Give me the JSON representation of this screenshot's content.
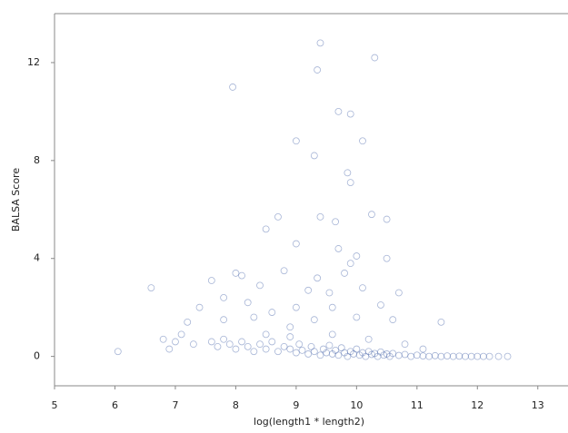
{
  "chart_data": {
    "type": "scatter",
    "xlabel": "log(length1 * length2)",
    "ylabel": "BALSA Score",
    "color": "#3b5ba5",
    "xlim": [
      5,
      13.5
    ],
    "ylim": [
      -1.2,
      14
    ],
    "xticks": [
      5,
      6,
      7,
      8,
      9,
      10,
      11,
      12,
      13
    ],
    "yticks": [
      0,
      4,
      8,
      12
    ],
    "grid": false,
    "x": [
      9.4,
      9.35,
      10.3,
      7.95,
      9.7,
      9.9,
      9.0,
      10.1,
      9.3,
      9.85,
      9.9,
      8.7,
      9.4,
      10.25,
      10.5,
      9.65,
      8.5,
      9.0,
      9.7,
      10.0,
      10.5,
      9.9,
      9.35,
      9.8,
      8.8,
      8.0,
      8.1,
      7.6,
      6.6,
      7.8,
      9.2,
      9.55,
      10.1,
      10.7,
      8.4,
      8.2,
      9.0,
      9.6,
      10.4,
      7.4,
      8.6,
      9.3,
      10.0,
      10.6,
      11.4,
      7.2,
      7.8,
      8.3,
      8.9,
      6.05,
      6.8,
      7.1,
      7.6,
      7.7,
      7.8,
      7.9,
      8.0,
      8.1,
      8.2,
      8.3,
      8.4,
      8.5,
      8.6,
      8.7,
      8.8,
      8.9,
      9.0,
      9.05,
      9.1,
      9.2,
      9.25,
      9.3,
      9.4,
      9.45,
      9.5,
      9.55,
      9.6,
      9.65,
      9.7,
      9.75,
      9.8,
      9.85,
      9.9,
      9.95,
      10.0,
      10.05,
      10.1,
      10.15,
      10.2,
      10.25,
      10.3,
      10.35,
      10.4,
      10.45,
      10.5,
      10.55,
      10.6,
      10.7,
      10.8,
      10.9,
      11.0,
      11.1,
      11.2,
      11.3,
      11.4,
      11.5,
      11.6,
      11.7,
      11.8,
      11.9,
      12.0,
      12.1,
      12.2,
      12.35,
      12.5,
      7.3,
      7.0,
      6.9,
      8.5,
      8.9,
      9.6,
      10.2,
      10.8,
      11.1
    ],
    "values": [
      12.8,
      11.7,
      12.2,
      11.0,
      10.0,
      9.9,
      8.8,
      8.8,
      8.2,
      7.5,
      7.1,
      5.7,
      5.7,
      5.8,
      5.6,
      5.5,
      5.2,
      4.6,
      4.4,
      4.1,
      4.0,
      3.8,
      3.2,
      3.4,
      3.5,
      3.4,
      3.3,
      3.1,
      2.8,
      2.4,
      2.7,
      2.6,
      2.8,
      2.6,
      2.9,
      2.2,
      2.0,
      2.0,
      2.1,
      2.0,
      1.8,
      1.5,
      1.6,
      1.5,
      1.4,
      1.4,
      1.5,
      1.6,
      1.2,
      0.2,
      0.7,
      0.9,
      0.6,
      0.4,
      0.7,
      0.5,
      0.3,
      0.6,
      0.4,
      0.2,
      0.5,
      0.3,
      0.6,
      0.2,
      0.4,
      0.3,
      0.15,
      0.5,
      0.25,
      0.1,
      0.4,
      0.2,
      0.05,
      0.3,
      0.15,
      0.45,
      0.1,
      0.25,
      0.05,
      0.35,
      0.15,
      0.0,
      0.2,
      0.1,
      0.3,
      0.05,
      0.15,
      0.0,
      0.2,
      0.08,
      0.12,
      0.0,
      0.18,
      0.05,
      0.1,
      0.0,
      0.12,
      0.04,
      0.08,
      0.0,
      0.05,
      0.02,
      0.0,
      0.03,
      0.0,
      0.02,
      0.0,
      0.01,
      0.0,
      0.0,
      0.0,
      0.0,
      0.0,
      0.0,
      0.0,
      0.5,
      0.6,
      0.3,
      0.9,
      0.8,
      0.9,
      0.7,
      0.5,
      0.3
    ]
  }
}
